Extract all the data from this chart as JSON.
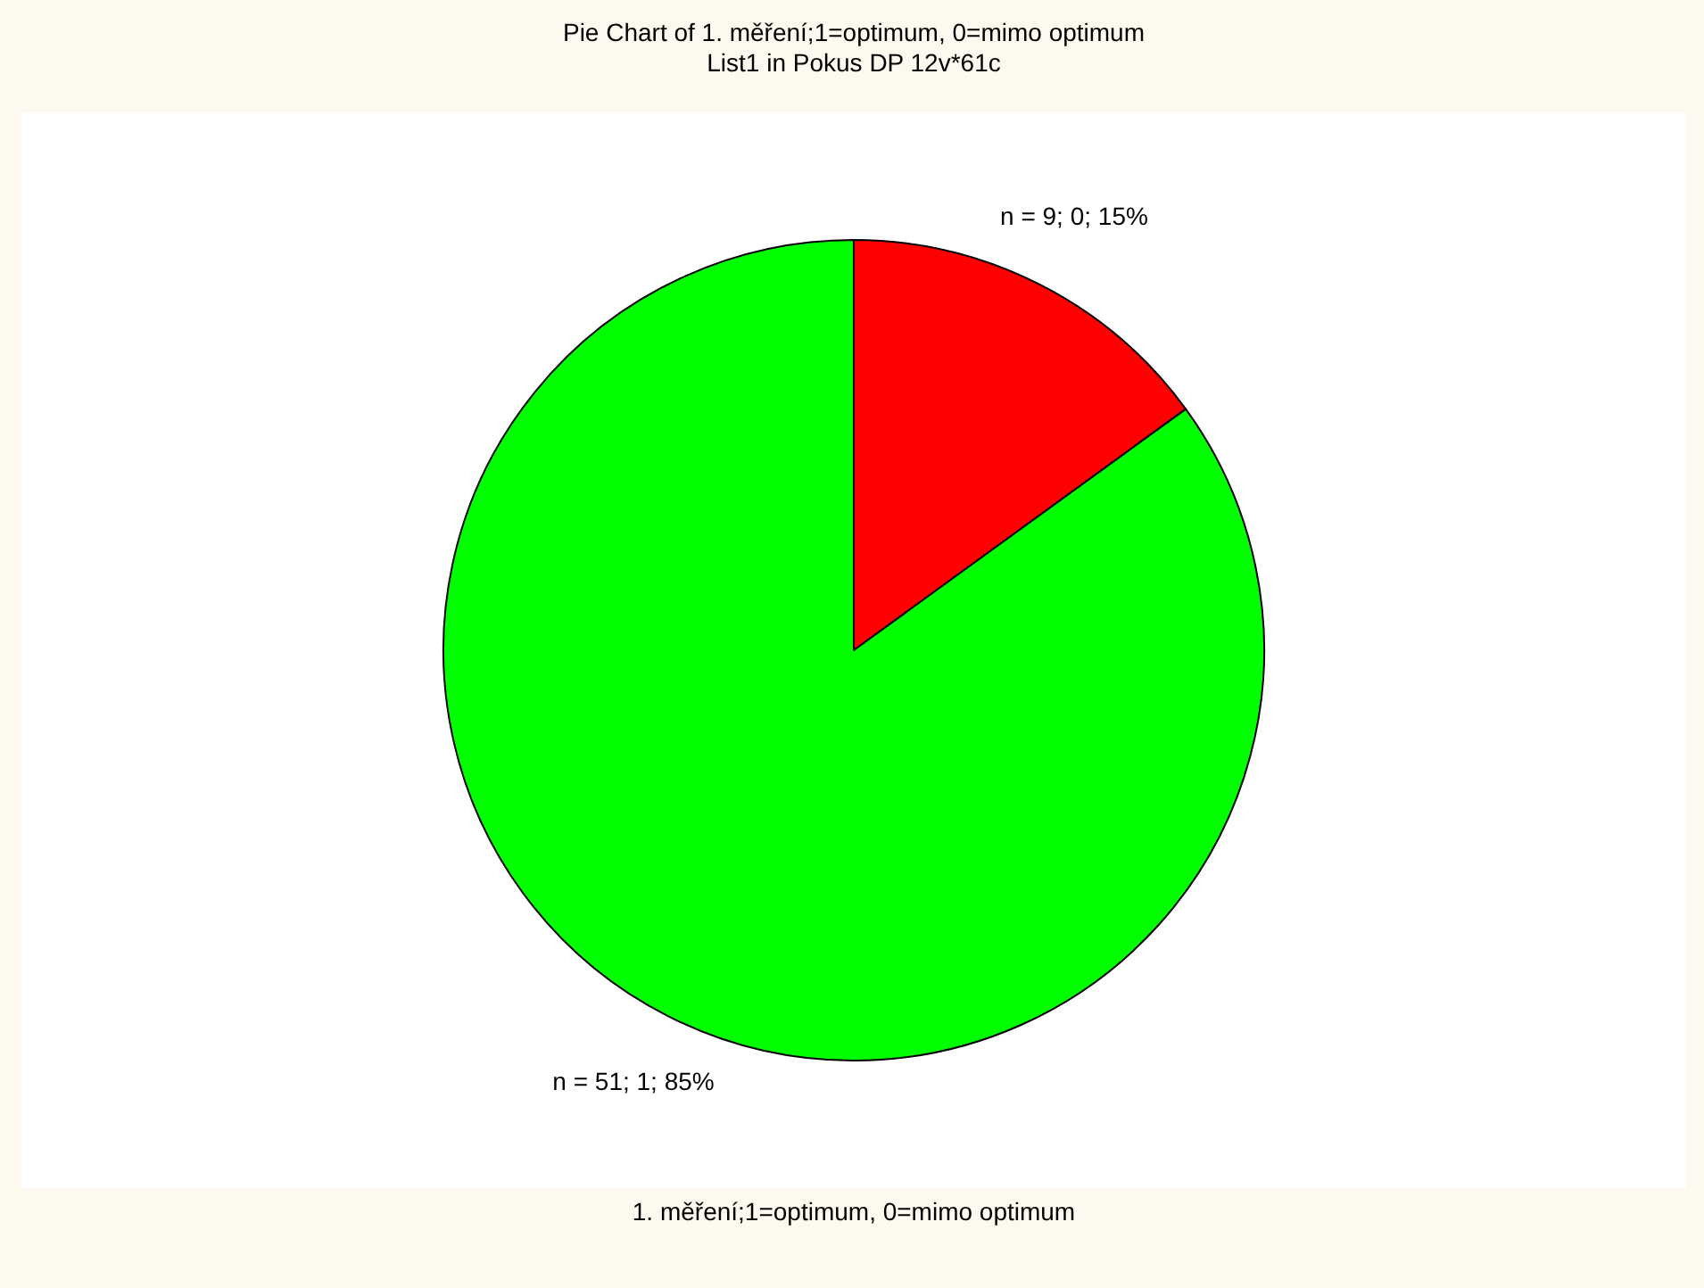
{
  "chart_data": {
    "type": "pie",
    "title": "Pie Chart of 1. měření;1=optimum, 0=mimo optimum",
    "subtitle": "List1 in Pokus DP 12v*61c",
    "xlabel": "1. měření;1=optimum, 0=mimo optimum",
    "categories": [
      null,
      null
    ],
    "values": [
      9,
      51
    ],
    "colors": [
      "#ff0000",
      "#00ff00"
    ],
    "value_labels": [
      "n = 9; 0; 15%",
      "n = 51; 1; 85%"
    ]
  }
}
